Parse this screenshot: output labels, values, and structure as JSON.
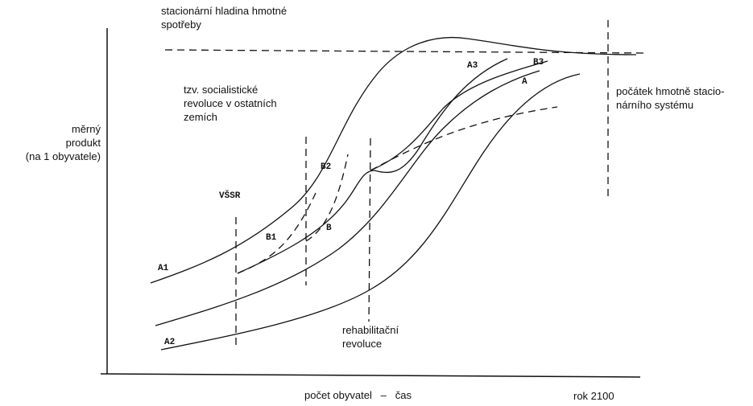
{
  "top_note": [
    "stacionární hladina hmotné",
    "spotřeby"
  ],
  "revolutions_note": [
    "tzv. socialistické",
    "revoluce v ostatních",
    "zemích"
  ],
  "y_axis_label": [
    "měrný",
    "produkt",
    "(na 1 obyvatele)"
  ],
  "stationary_note": [
    "počátek hmotně stacio-",
    "nárního systému"
  ],
  "rehab_note": [
    "rehabilitační",
    "revoluce"
  ],
  "x_axis_label": "počet obyvatel   –   čas",
  "year_label": "rok 2100",
  "curve_labels": [
    "A1",
    "A2",
    "A3",
    "B3",
    "A",
    "B",
    "B1",
    "B2",
    "VŠSR"
  ]
}
